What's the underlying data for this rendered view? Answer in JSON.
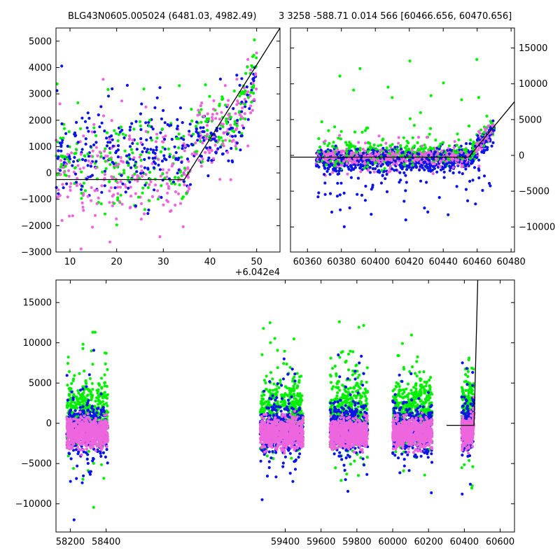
{
  "titles": {
    "left": "BLG43N0605.005024 (6481.03, 4982.49)",
    "right": "3 3258 -588.71 0.014 566 [60466.656, 60470.656]"
  },
  "colors": {
    "g": "#00ee00",
    "b": "#0a14e6",
    "m": "#ee66dd",
    "line": "#000000"
  },
  "chart_data": [
    {
      "id": "zoom",
      "type": "scatter",
      "xlim": [
        60427,
        60475
      ],
      "ylim": [
        -3000,
        5500
      ],
      "xticks": [
        {
          "v": 60430,
          "label": "10"
        },
        {
          "v": 60440,
          "label": "20"
        },
        {
          "v": 60450,
          "label": "30"
        },
        {
          "v": 60460,
          "label": "40"
        },
        {
          "v": 60470,
          "label": "50"
        }
      ],
      "yticks": [
        {
          "v": -3000,
          "label": "−3000"
        },
        {
          "v": -2000,
          "label": "−2000"
        },
        {
          "v": -1000,
          "label": "−1000"
        },
        {
          "v": 0,
          "label": "0"
        },
        {
          "v": 1000,
          "label": "1000"
        },
        {
          "v": 2000,
          "label": "2000"
        },
        {
          "v": 3000,
          "label": "3000"
        },
        {
          "v": 4000,
          "label": "4000"
        },
        {
          "v": 5000,
          "label": "5000"
        }
      ],
      "x_offset_label": "+6.042e4",
      "model_line": [
        [
          60427,
          -250
        ],
        [
          60454.5,
          -250
        ],
        [
          60475,
          5500
        ]
      ]
    },
    {
      "id": "season",
      "type": "scatter",
      "xlim": [
        60350,
        60482
      ],
      "ylim": [
        -13500,
        17800
      ],
      "xticks": [
        {
          "v": 60360,
          "label": "60360"
        },
        {
          "v": 60380,
          "label": "60380"
        },
        {
          "v": 60400,
          "label": "60400"
        },
        {
          "v": 60420,
          "label": "60420"
        },
        {
          "v": 60440,
          "label": "60440"
        },
        {
          "v": 60460,
          "label": "60460"
        },
        {
          "v": 60480,
          "label": "60480"
        }
      ],
      "yticks": [
        {
          "v": -10000,
          "label": "−10000"
        },
        {
          "v": -5000,
          "label": "−5000"
        },
        {
          "v": 0,
          "label": "0"
        },
        {
          "v": 5000,
          "label": "5000"
        },
        {
          "v": 10000,
          "label": "10000"
        },
        {
          "v": 15000,
          "label": "15000"
        }
      ],
      "model_line": [
        [
          60350,
          -250
        ],
        [
          60455,
          -250
        ],
        [
          60482,
          7500
        ]
      ]
    },
    {
      "id": "full",
      "type": "scatter",
      "xlim": [
        58120,
        60680
      ],
      "ylim": [
        -13500,
        17800
      ],
      "xticks": [
        {
          "v": 58200,
          "label": "58200"
        },
        {
          "v": 58400,
          "label": "58400"
        },
        {
          "v": 59400,
          "label": "59400"
        },
        {
          "v": 59600,
          "label": "59600"
        },
        {
          "v": 59800,
          "label": "59800"
        },
        {
          "v": 60000,
          "label": "60000"
        },
        {
          "v": 60200,
          "label": "60200"
        },
        {
          "v": 60400,
          "label": "60400"
        },
        {
          "v": 60600,
          "label": "60600"
        }
      ],
      "yticks": [
        {
          "v": -10000,
          "label": "−10000"
        },
        {
          "v": -5000,
          "label": "−5000"
        },
        {
          "v": 0,
          "label": "0"
        },
        {
          "v": 5000,
          "label": "5000"
        },
        {
          "v": 10000,
          "label": "10000"
        },
        {
          "v": 15000,
          "label": "15000"
        }
      ],
      "seasons": [
        [
          58170,
          58420
        ],
        [
          59250,
          59510
        ],
        [
          59640,
          59870
        ],
        [
          59990,
          60230
        ],
        [
          60360,
          60470
        ]
      ],
      "model_line": [
        [
          60300,
          -250
        ],
        [
          60454,
          -250
        ],
        [
          60475,
          17800
        ]
      ]
    }
  ]
}
